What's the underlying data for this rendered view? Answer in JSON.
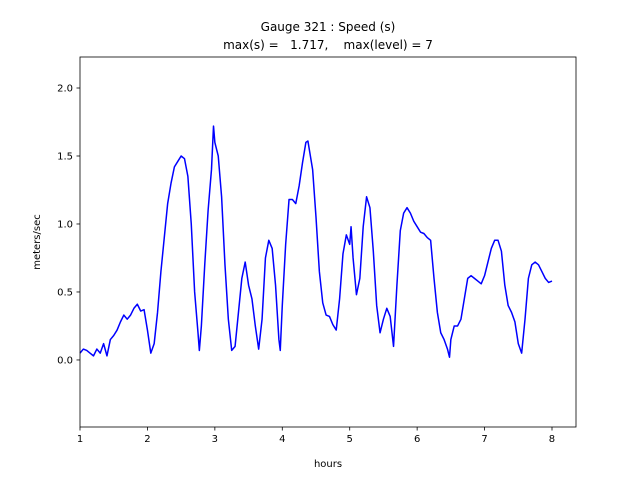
{
  "chart_data": {
    "type": "line",
    "title": "Gauge 321 : Speed (s)",
    "subtitle": "max(s) =   1.717,    max(level) = 7",
    "xlabel": "hours",
    "ylabel": "meters/sec",
    "xlim": [
      1,
      8.356
    ],
    "ylim": [
      -0.493,
      2.228
    ],
    "xticks": [
      1,
      2,
      3,
      4,
      5,
      6,
      7,
      8
    ],
    "yticks": [
      {
        "value": 0,
        "label": "0.0"
      },
      0.5,
      {
        "value": 1,
        "label": "1.0"
      },
      1.5,
      {
        "value": 2,
        "label": "2.0"
      }
    ],
    "grid": false,
    "series": [
      {
        "color": "blue",
        "x": [
          1.0,
          1.05,
          1.1,
          1.15,
          1.2,
          1.25,
          1.3,
          1.35,
          1.4,
          1.45,
          1.5,
          1.55,
          1.6,
          1.65,
          1.7,
          1.75,
          1.8,
          1.85,
          1.9,
          1.95,
          2.0,
          2.05,
          2.1,
          2.15,
          2.2,
          2.25,
          2.3,
          2.35,
          2.4,
          2.45,
          2.5,
          2.55,
          2.6,
          2.65,
          2.7,
          2.75,
          2.77,
          2.8,
          2.85,
          2.9,
          2.95,
          2.98,
          3.0,
          3.05,
          3.1,
          3.15,
          3.2,
          3.25,
          3.3,
          3.35,
          3.4,
          3.45,
          3.5,
          3.55,
          3.6,
          3.65,
          3.7,
          3.75,
          3.8,
          3.85,
          3.9,
          3.95,
          3.97,
          4.0,
          4.05,
          4.1,
          4.15,
          4.2,
          4.25,
          4.3,
          4.35,
          4.38,
          4.45,
          4.5,
          4.55,
          4.6,
          4.65,
          4.7,
          4.75,
          4.8,
          4.85,
          4.9,
          4.95,
          5.0,
          5.02,
          5.05,
          5.1,
          5.15,
          5.2,
          5.25,
          5.3,
          5.35,
          5.4,
          5.45,
          5.5,
          5.55,
          5.6,
          5.65,
          5.7,
          5.75,
          5.8,
          5.85,
          5.9,
          5.95,
          6.0,
          6.05,
          6.1,
          6.15,
          6.2,
          6.25,
          6.3,
          6.35,
          6.4,
          6.45,
          6.48,
          6.5,
          6.55,
          6.6,
          6.65,
          6.7,
          6.75,
          6.8,
          6.85,
          6.9,
          6.95,
          7.0,
          7.05,
          7.1,
          7.15,
          7.2,
          7.25,
          7.3,
          7.35,
          7.4,
          7.45,
          7.5,
          7.55,
          7.6,
          7.65,
          7.7,
          7.75,
          7.8,
          7.85,
          7.9,
          7.95,
          8.0
        ],
        "values": [
          0.05,
          0.08,
          0.07,
          0.05,
          0.03,
          0.08,
          0.05,
          0.12,
          0.03,
          0.15,
          0.18,
          0.22,
          0.28,
          0.33,
          0.3,
          0.33,
          0.38,
          0.41,
          0.36,
          0.37,
          0.22,
          0.05,
          0.12,
          0.35,
          0.65,
          0.9,
          1.15,
          1.3,
          1.42,
          1.46,
          1.5,
          1.48,
          1.35,
          1.0,
          0.5,
          0.2,
          0.07,
          0.25,
          0.7,
          1.1,
          1.4,
          1.72,
          1.6,
          1.5,
          1.2,
          0.7,
          0.3,
          0.07,
          0.1,
          0.35,
          0.6,
          0.72,
          0.55,
          0.45,
          0.25,
          0.08,
          0.3,
          0.75,
          0.88,
          0.82,
          0.55,
          0.15,
          0.07,
          0.4,
          0.85,
          1.18,
          1.18,
          1.15,
          1.28,
          1.45,
          1.6,
          1.61,
          1.4,
          1.05,
          0.65,
          0.42,
          0.33,
          0.32,
          0.26,
          0.22,
          0.45,
          0.78,
          0.92,
          0.85,
          0.98,
          0.75,
          0.48,
          0.6,
          0.98,
          1.2,
          1.12,
          0.8,
          0.4,
          0.2,
          0.3,
          0.38,
          0.32,
          0.1,
          0.55,
          0.95,
          1.08,
          1.12,
          1.08,
          1.02,
          0.98,
          0.94,
          0.93,
          0.9,
          0.88,
          0.6,
          0.35,
          0.2,
          0.15,
          0.08,
          0.02,
          0.15,
          0.25,
          0.25,
          0.3,
          0.45,
          0.6,
          0.62,
          0.6,
          0.58,
          0.56,
          0.62,
          0.72,
          0.82,
          0.88,
          0.88,
          0.8,
          0.55,
          0.4,
          0.35,
          0.28,
          0.12,
          0.05,
          0.3,
          0.6,
          0.7,
          0.72,
          0.7,
          0.65,
          0.6,
          0.57,
          0.58
        ]
      }
    ]
  }
}
